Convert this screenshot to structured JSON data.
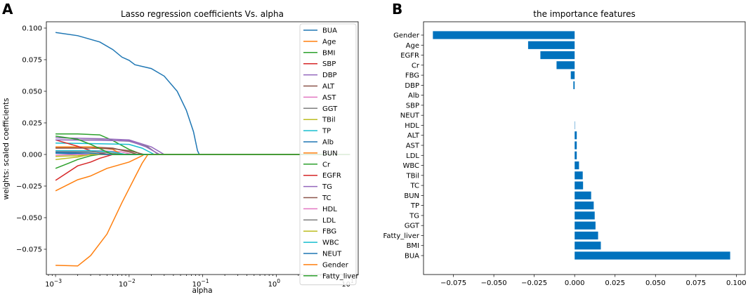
{
  "chart_data": [
    {
      "panel_label": "A",
      "type": "line",
      "title": "Lasso regression coefficients Vs. alpha",
      "xlabel": "alpha",
      "ylabel": "weights: scaled coefficients",
      "xscale": "log",
      "xlim": [
        0.00075,
        13
      ],
      "ylim": [
        -0.095,
        0.105
      ],
      "x_tick_values": [
        0.001,
        0.01,
        0.1,
        1,
        10
      ],
      "x_tick_labels": [
        {
          "base": "10",
          "exp": "−3"
        },
        {
          "base": "10",
          "exp": "−2"
        },
        {
          "base": "10",
          "exp": "−1"
        },
        {
          "base": "10",
          "exp": "0"
        },
        {
          "base": "10",
          "exp": "1"
        }
      ],
      "y_tick_values": [
        -0.075,
        -0.05,
        -0.025,
        0.0,
        0.025,
        0.05,
        0.075,
        0.1
      ],
      "y_tick_labels": [
        "−0.075",
        "−0.050",
        "−0.025",
        "0.000",
        "0.025",
        "0.050",
        "0.075",
        "0.100"
      ],
      "legend_position": "right",
      "series": [
        {
          "name": "BUA",
          "color": "#1f77b4",
          "points": [
            [
              0.001,
              0.0965
            ],
            [
              0.002,
              0.094
            ],
            [
              0.004,
              0.089
            ],
            [
              0.006,
              0.083
            ],
            [
              0.008,
              0.077
            ],
            [
              0.01,
              0.0745
            ],
            [
              0.012,
              0.071
            ],
            [
              0.02,
              0.068
            ],
            [
              0.03,
              0.062
            ],
            [
              0.045,
              0.05
            ],
            [
              0.06,
              0.035
            ],
            [
              0.075,
              0.018
            ],
            [
              0.085,
              0.003
            ],
            [
              0.09,
              0.0
            ],
            [
              10,
              0.0
            ]
          ]
        },
        {
          "name": "Age",
          "color": "#ff7f0e",
          "points": [
            [
              0.001,
              -0.0288
            ],
            [
              0.002,
              -0.02
            ],
            [
              0.003,
              -0.017
            ],
            [
              0.005,
              -0.011
            ],
            [
              0.01,
              -0.006
            ],
            [
              0.015,
              -0.001
            ],
            [
              0.016,
              0.0
            ],
            [
              10,
              0.0
            ]
          ]
        },
        {
          "name": "BMI",
          "color": "#2ca02c",
          "points": [
            [
              0.001,
              0.0162
            ],
            [
              0.002,
              0.0162
            ],
            [
              0.004,
              0.0155
            ],
            [
              0.006,
              0.011
            ],
            [
              0.01,
              0.004
            ],
            [
              0.015,
              0.0
            ],
            [
              10,
              0.0
            ]
          ]
        },
        {
          "name": "SBP",
          "color": "#d62728",
          "points": [
            [
              0.001,
              -0.0205
            ],
            [
              0.002,
              -0.009
            ],
            [
              0.003,
              -0.006
            ],
            [
              0.004,
              -0.003
            ],
            [
              0.006,
              0.0
            ],
            [
              10,
              0.0
            ]
          ]
        },
        {
          "name": "DBP",
          "color": "#9467bd",
          "points": [
            [
              0.001,
              0.0132
            ],
            [
              0.004,
              0.0125
            ],
            [
              0.01,
              0.0115
            ],
            [
              0.02,
              0.006
            ],
            [
              0.03,
              0.0
            ],
            [
              10,
              0.0
            ]
          ]
        },
        {
          "name": "ALT",
          "color": "#8c564b",
          "points": [
            [
              0.001,
              0.0055
            ],
            [
              0.003,
              0.006
            ],
            [
              0.006,
              0.005
            ],
            [
              0.01,
              0.002
            ],
            [
              0.013,
              0.0
            ],
            [
              10,
              0.0
            ]
          ]
        },
        {
          "name": "AST",
          "color": "#e377c2",
          "points": [
            [
              0.001,
              0.0025
            ],
            [
              0.004,
              0.003
            ],
            [
              0.008,
              0.002
            ],
            [
              0.011,
              0.0
            ],
            [
              10,
              0.0
            ]
          ]
        },
        {
          "name": "GGT",
          "color": "#7f7f7f",
          "points": [
            [
              0.001,
              0.0115
            ],
            [
              0.004,
              0.0115
            ],
            [
              0.01,
              0.0105
            ],
            [
              0.018,
              0.006
            ],
            [
              0.025,
              0.0
            ],
            [
              10,
              0.0
            ]
          ]
        },
        {
          "name": "TBil",
          "color": "#bcbd22",
          "points": [
            [
              0.001,
              -0.0015
            ],
            [
              0.002,
              -0.001
            ],
            [
              0.003,
              0.0
            ],
            [
              10,
              0.0
            ]
          ]
        },
        {
          "name": "TP",
          "color": "#17becf",
          "points": [
            [
              0.001,
              0.009
            ],
            [
              0.004,
              0.0085
            ],
            [
              0.01,
              0.008
            ],
            [
              0.015,
              0.005
            ],
            [
              0.022,
              0.0
            ],
            [
              10,
              0.0
            ]
          ]
        },
        {
          "name": "Alb",
          "color": "#1f77b4",
          "points": [
            [
              0.001,
              0.001
            ],
            [
              0.002,
              0.0005
            ],
            [
              0.003,
              0.0
            ],
            [
              10,
              0.0
            ]
          ]
        },
        {
          "name": "BUN",
          "color": "#ff7f0e",
          "points": [
            [
              0.001,
              0.006
            ],
            [
              0.003,
              0.006
            ],
            [
              0.006,
              0.004
            ],
            [
              0.008,
              0.0
            ],
            [
              10,
              0.0
            ]
          ]
        },
        {
          "name": "Cr",
          "color": "#2ca02c",
          "points": [
            [
              0.001,
              -0.011
            ],
            [
              0.0015,
              -0.007
            ],
            [
              0.002,
              -0.004
            ],
            [
              0.003,
              -0.001
            ],
            [
              0.004,
              0.0
            ],
            [
              10,
              0.0
            ]
          ]
        },
        {
          "name": "EGFR",
          "color": "#d62728",
          "points": [
            [
              0.001,
              0.0115
            ],
            [
              0.002,
              0.0065
            ],
            [
              0.003,
              0.003
            ],
            [
              0.005,
              0.0
            ],
            [
              10,
              0.0
            ]
          ]
        },
        {
          "name": "TG",
          "color": "#9467bd",
          "points": [
            [
              0.001,
              0.0115
            ],
            [
              0.004,
              0.0112
            ],
            [
              0.01,
              0.0108
            ],
            [
              0.017,
              0.006
            ],
            [
              0.026,
              0.0
            ],
            [
              10,
              0.0
            ]
          ]
        },
        {
          "name": "TC",
          "color": "#8c564b",
          "points": [
            [
              0.001,
              0.005
            ],
            [
              0.003,
              0.005
            ],
            [
              0.006,
              0.0045
            ],
            [
              0.01,
              0.003
            ],
            [
              0.016,
              0.0
            ],
            [
              10,
              0.0
            ]
          ]
        },
        {
          "name": "HDL",
          "color": "#e377c2",
          "points": [
            [
              0.001,
              -0.0005
            ],
            [
              0.002,
              0.0
            ],
            [
              10,
              0.0
            ]
          ]
        },
        {
          "name": "LDL",
          "color": "#7f7f7f",
          "points": [
            [
              0.001,
              0.002
            ],
            [
              0.003,
              0.002
            ],
            [
              0.006,
              0.001
            ],
            [
              0.008,
              0.0
            ],
            [
              10,
              0.0
            ]
          ]
        },
        {
          "name": "FBG",
          "color": "#bcbd22",
          "points": [
            [
              0.001,
              -0.004
            ],
            [
              0.002,
              -0.002
            ],
            [
              0.003,
              0.0
            ],
            [
              10,
              0.0
            ]
          ]
        },
        {
          "name": "WBC",
          "color": "#17becf",
          "points": [
            [
              0.001,
              0.003
            ],
            [
              0.003,
              0.003
            ],
            [
              0.006,
              0.002
            ],
            [
              0.009,
              0.0
            ],
            [
              10,
              0.0
            ]
          ]
        },
        {
          "name": "NEUT",
          "color": "#1f77b4",
          "points": [
            [
              0.001,
              0.0015
            ],
            [
              0.003,
              0.001
            ],
            [
              0.005,
              0.0
            ],
            [
              10,
              0.0
            ]
          ]
        },
        {
          "name": "Gender",
          "color": "#ff7f0e",
          "points": [
            [
              0.001,
              -0.0877
            ],
            [
              0.002,
              -0.0882
            ],
            [
              0.003,
              -0.08
            ],
            [
              0.005,
              -0.063
            ],
            [
              0.008,
              -0.038
            ],
            [
              0.012,
              -0.018
            ],
            [
              0.015,
              -0.007
            ],
            [
              0.018,
              0.0
            ],
            [
              10,
              0.0
            ]
          ]
        },
        {
          "name": "Fatty_liver",
          "color": "#2ca02c",
          "points": [
            [
              0.001,
              0.0145
            ],
            [
              0.002,
              0.012
            ],
            [
              0.003,
              0.008
            ],
            [
              0.005,
              0.002
            ],
            [
              0.006,
              0.0
            ],
            [
              10,
              0.0
            ]
          ]
        }
      ]
    },
    {
      "panel_label": "B",
      "type": "bar",
      "orientation": "horizontal",
      "title": "the importance features",
      "xlim": [
        -0.0935,
        0.1055
      ],
      "x_tick_values": [
        -0.075,
        -0.05,
        -0.025,
        0.0,
        0.025,
        0.05,
        0.075,
        0.1
      ],
      "x_tick_labels": [
        "−0.075",
        "−0.050",
        "−0.025",
        "0.000",
        "0.025",
        "0.050",
        "0.075",
        "0.100"
      ],
      "bar_color": "#0072bd",
      "categories": [
        "Gender",
        "Age",
        "EGFR",
        "Cr",
        "FBG",
        "DBP",
        "Alb",
        "SBP",
        "NEUT",
        "HDL",
        "ALT",
        "AST",
        "LDL",
        "WBC",
        "TBil",
        "TC",
        "BUN",
        "TP",
        "TG",
        "GGT",
        "Fatty_liver",
        "BMI",
        "BUA"
      ],
      "values": [
        -0.0877,
        -0.0288,
        -0.0212,
        -0.0112,
        -0.0024,
        -0.0008,
        0.0,
        0.0,
        0.0,
        0.0002,
        0.0013,
        0.0013,
        0.0013,
        0.0027,
        0.005,
        0.0052,
        0.0102,
        0.0118,
        0.0124,
        0.0129,
        0.0145,
        0.0162,
        0.0962
      ]
    }
  ]
}
